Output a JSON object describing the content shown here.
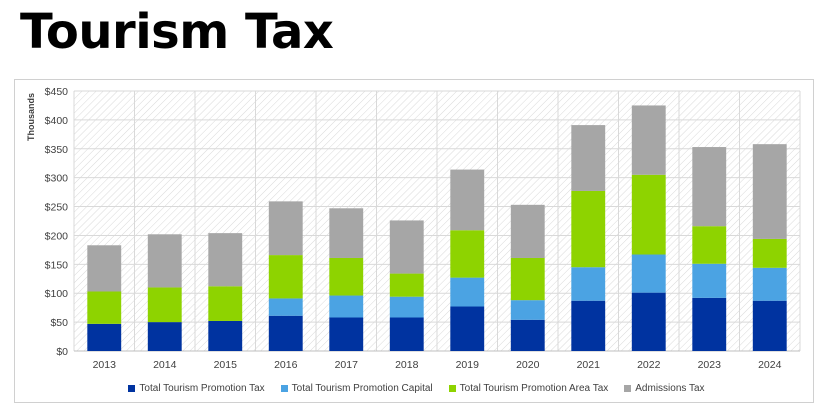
{
  "page": {
    "title": "Tourism Tax"
  },
  "chart_data": {
    "type": "bar",
    "stacked": true,
    "title": "Tourism Tax",
    "ylabel": "Thousands",
    "xlabel": "",
    "ylim": [
      0,
      450
    ],
    "y_ticks": [
      "$0",
      "$50",
      "$100",
      "$150",
      "$200",
      "$250",
      "$300",
      "$350",
      "$400",
      "$450"
    ],
    "y_tick_values": [
      0,
      50,
      100,
      150,
      200,
      250,
      300,
      350,
      400,
      450
    ],
    "categories": [
      "2013",
      "2014",
      "2015",
      "2016",
      "2017",
      "2018",
      "2019",
      "2020",
      "2021",
      "2022",
      "2023",
      "2024"
    ],
    "series": [
      {
        "name": "Total Tourism Promotion Tax",
        "color": "#0033a0",
        "values": [
          47,
          50,
          52,
          61,
          58,
          58,
          77,
          54,
          87,
          101,
          92,
          87
        ]
      },
      {
        "name": "Total Tourism Promotion Capital",
        "color": "#4ba3e3",
        "values": [
          0,
          0,
          0,
          30,
          38,
          36,
          50,
          34,
          58,
          66,
          59,
          57
        ]
      },
      {
        "name": "Total Tourism Promotion Area Tax",
        "color": "#8ed300",
        "values": [
          56,
          60,
          60,
          75,
          65,
          40,
          82,
          73,
          132,
          138,
          65,
          50
        ]
      },
      {
        "name": "Admissions Tax",
        "color": "#a6a6a6",
        "values": [
          80,
          92,
          92,
          93,
          86,
          92,
          105,
          92,
          114,
          120,
          137,
          164
        ]
      }
    ],
    "legend_position": "bottom",
    "grid": true
  }
}
